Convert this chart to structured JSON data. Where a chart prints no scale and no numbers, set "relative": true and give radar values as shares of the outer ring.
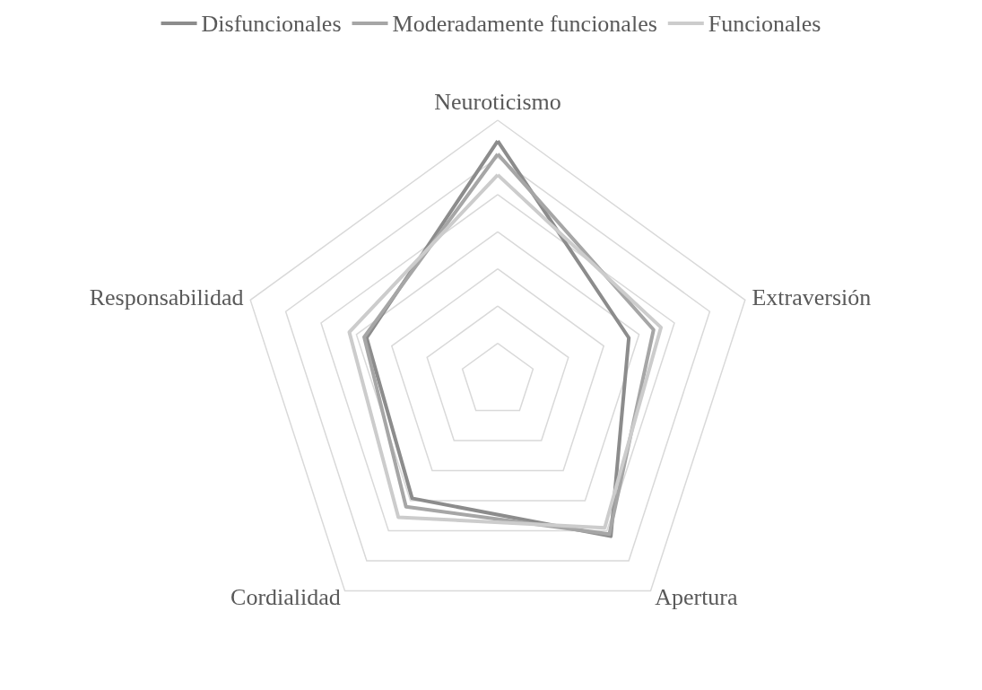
{
  "chart_data": {
    "type": "radar",
    "relative": true,
    "legend": "top",
    "marker": "none",
    "categories": [
      "Neuroticismo",
      "Extraversión",
      "Apertura",
      "Cordialidad",
      "Responsabilidad"
    ],
    "series": [
      {
        "name": "Disfuncionales",
        "color": "#8c8c8c",
        "values": [
          0.92,
          0.53,
          0.74,
          0.56,
          0.53
        ]
      },
      {
        "name": "Moderadamente funcionales",
        "color": "#a6a6a6",
        "values": [
          0.87,
          0.63,
          0.73,
          0.6,
          0.54
        ]
      },
      {
        "name": "Funcionales",
        "color": "#cccccc",
        "values": [
          0.79,
          0.66,
          0.7,
          0.65,
          0.6
        ]
      }
    ]
  }
}
